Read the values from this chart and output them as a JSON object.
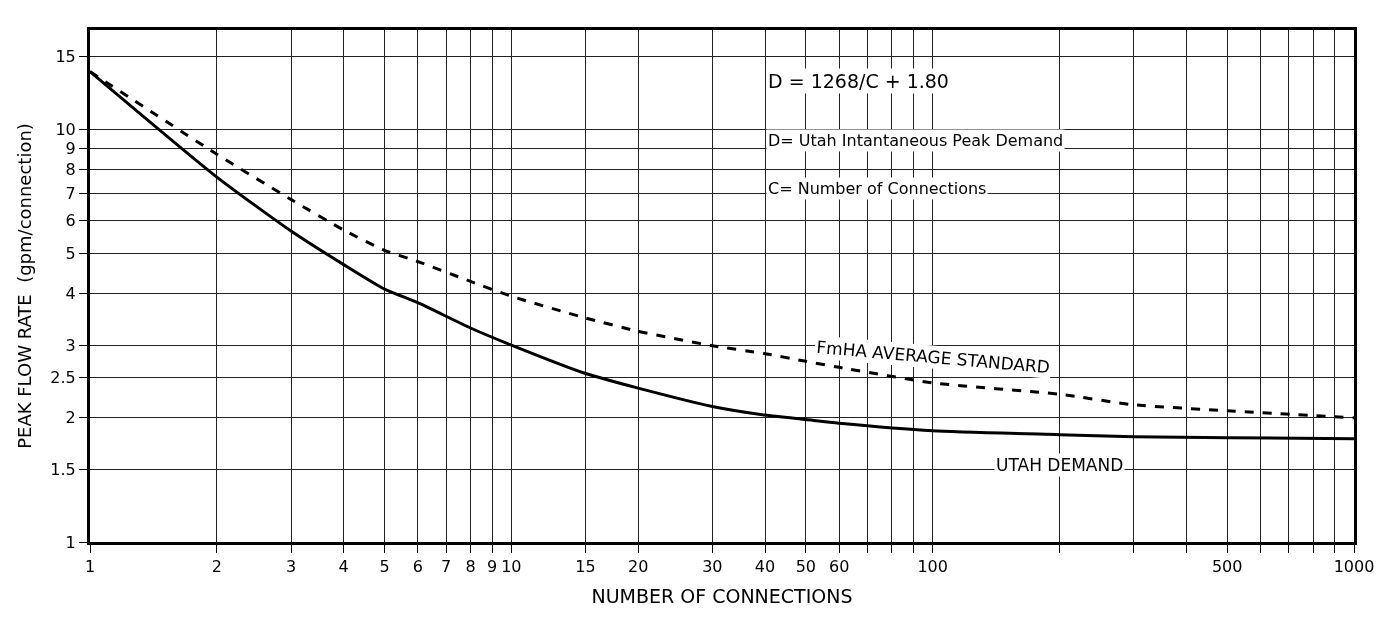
{
  "chart_data": {
    "type": "line",
    "xlabel": "NUMBER OF CONNECTIONS",
    "ylabel": "PEAK FLOW RATE  (gpm/connection)",
    "log": "xy",
    "grid": true,
    "legend": false,
    "marker": "none",
    "xlim": [
      1,
      1000
    ],
    "ylim": [
      1,
      17.4
    ],
    "xticks": [
      1,
      2,
      3,
      4,
      5,
      6,
      7,
      8,
      9,
      10,
      15,
      20,
      30,
      40,
      50,
      60,
      {
        "value": 70,
        "label": null
      },
      {
        "value": 80,
        "label": null
      },
      {
        "value": 90,
        "label": null
      },
      100,
      {
        "value": 200,
        "label": null
      },
      {
        "value": 300,
        "label": null
      },
      {
        "value": 400,
        "label": null
      },
      500,
      {
        "value": 600,
        "label": null
      },
      {
        "value": 700,
        "label": null
      },
      {
        "value": 800,
        "label": null
      },
      {
        "value": 900,
        "label": null
      },
      1000
    ],
    "yticks": [
      1,
      1.5,
      2,
      2.5,
      3,
      4,
      5,
      6,
      7,
      8,
      9,
      10,
      15
    ],
    "x": [
      1,
      2,
      3,
      4,
      5,
      6,
      8,
      10,
      15,
      20,
      30,
      40,
      50,
      60,
      100,
      200,
      300,
      500,
      1000
    ],
    "series": [
      {
        "name": "UTAH DEMAND",
        "color": "#000000",
        "line_style": "solid",
        "values": [
          13.8,
          7.66,
          5.67,
          4.7,
          4.1,
          3.8,
          3.3,
          3.0,
          2.56,
          2.36,
          2.13,
          2.03,
          1.98,
          1.94,
          1.86,
          1.82,
          1.8,
          1.79,
          1.78
        ]
      },
      {
        "name": "FmHA AVERAGE STANDARD",
        "color": "#000000",
        "line_style": "dashed",
        "values": [
          13.8,
          8.7,
          6.76,
          5.7,
          5.09,
          4.78,
          4.28,
          3.94,
          3.49,
          3.24,
          2.99,
          2.86,
          2.74,
          2.65,
          2.43,
          2.28,
          2.15,
          2.08,
          2.0
        ]
      }
    ],
    "annotations": [
      "D = 1268/C + 1.80",
      "D= Utah Intantaneous Peak Demand",
      "C= Number of Connections"
    ]
  }
}
